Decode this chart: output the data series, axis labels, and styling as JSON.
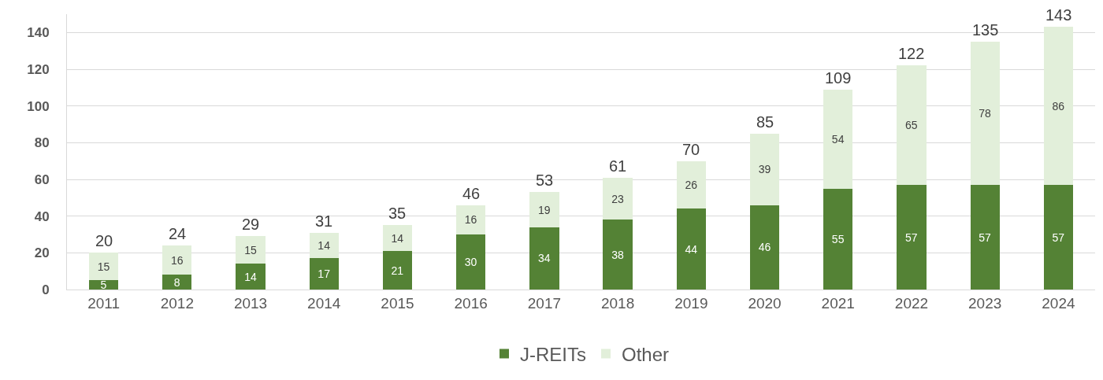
{
  "chart_data": {
    "type": "bar",
    "stacked": true,
    "categories": [
      "2011",
      "2012",
      "2013",
      "2014",
      "2015",
      "2016",
      "2017",
      "2018",
      "2019",
      "2020",
      "2021",
      "2022",
      "2023",
      "2024"
    ],
    "series": [
      {
        "name": "J-REITs",
        "color": "#548235",
        "values": [
          5,
          8,
          14,
          17,
          21,
          30,
          34,
          38,
          44,
          46,
          55,
          57,
          57,
          57
        ]
      },
      {
        "name": "Other",
        "color": "#e2efda",
        "values": [
          15,
          16,
          15,
          14,
          14,
          16,
          19,
          23,
          26,
          39,
          54,
          65,
          78,
          86
        ]
      }
    ],
    "totals": [
      "20",
      "24",
      "29",
      "31",
      "35",
      "46",
      "53",
      "61",
      "70",
      "85",
      "109",
      "122",
      "135",
      "143"
    ],
    "data_labels": true,
    "ylim": [
      0,
      150
    ],
    "yticks": [
      0,
      20,
      40,
      60,
      80,
      100,
      120,
      140
    ],
    "grid": "y",
    "legend": "bottom"
  }
}
